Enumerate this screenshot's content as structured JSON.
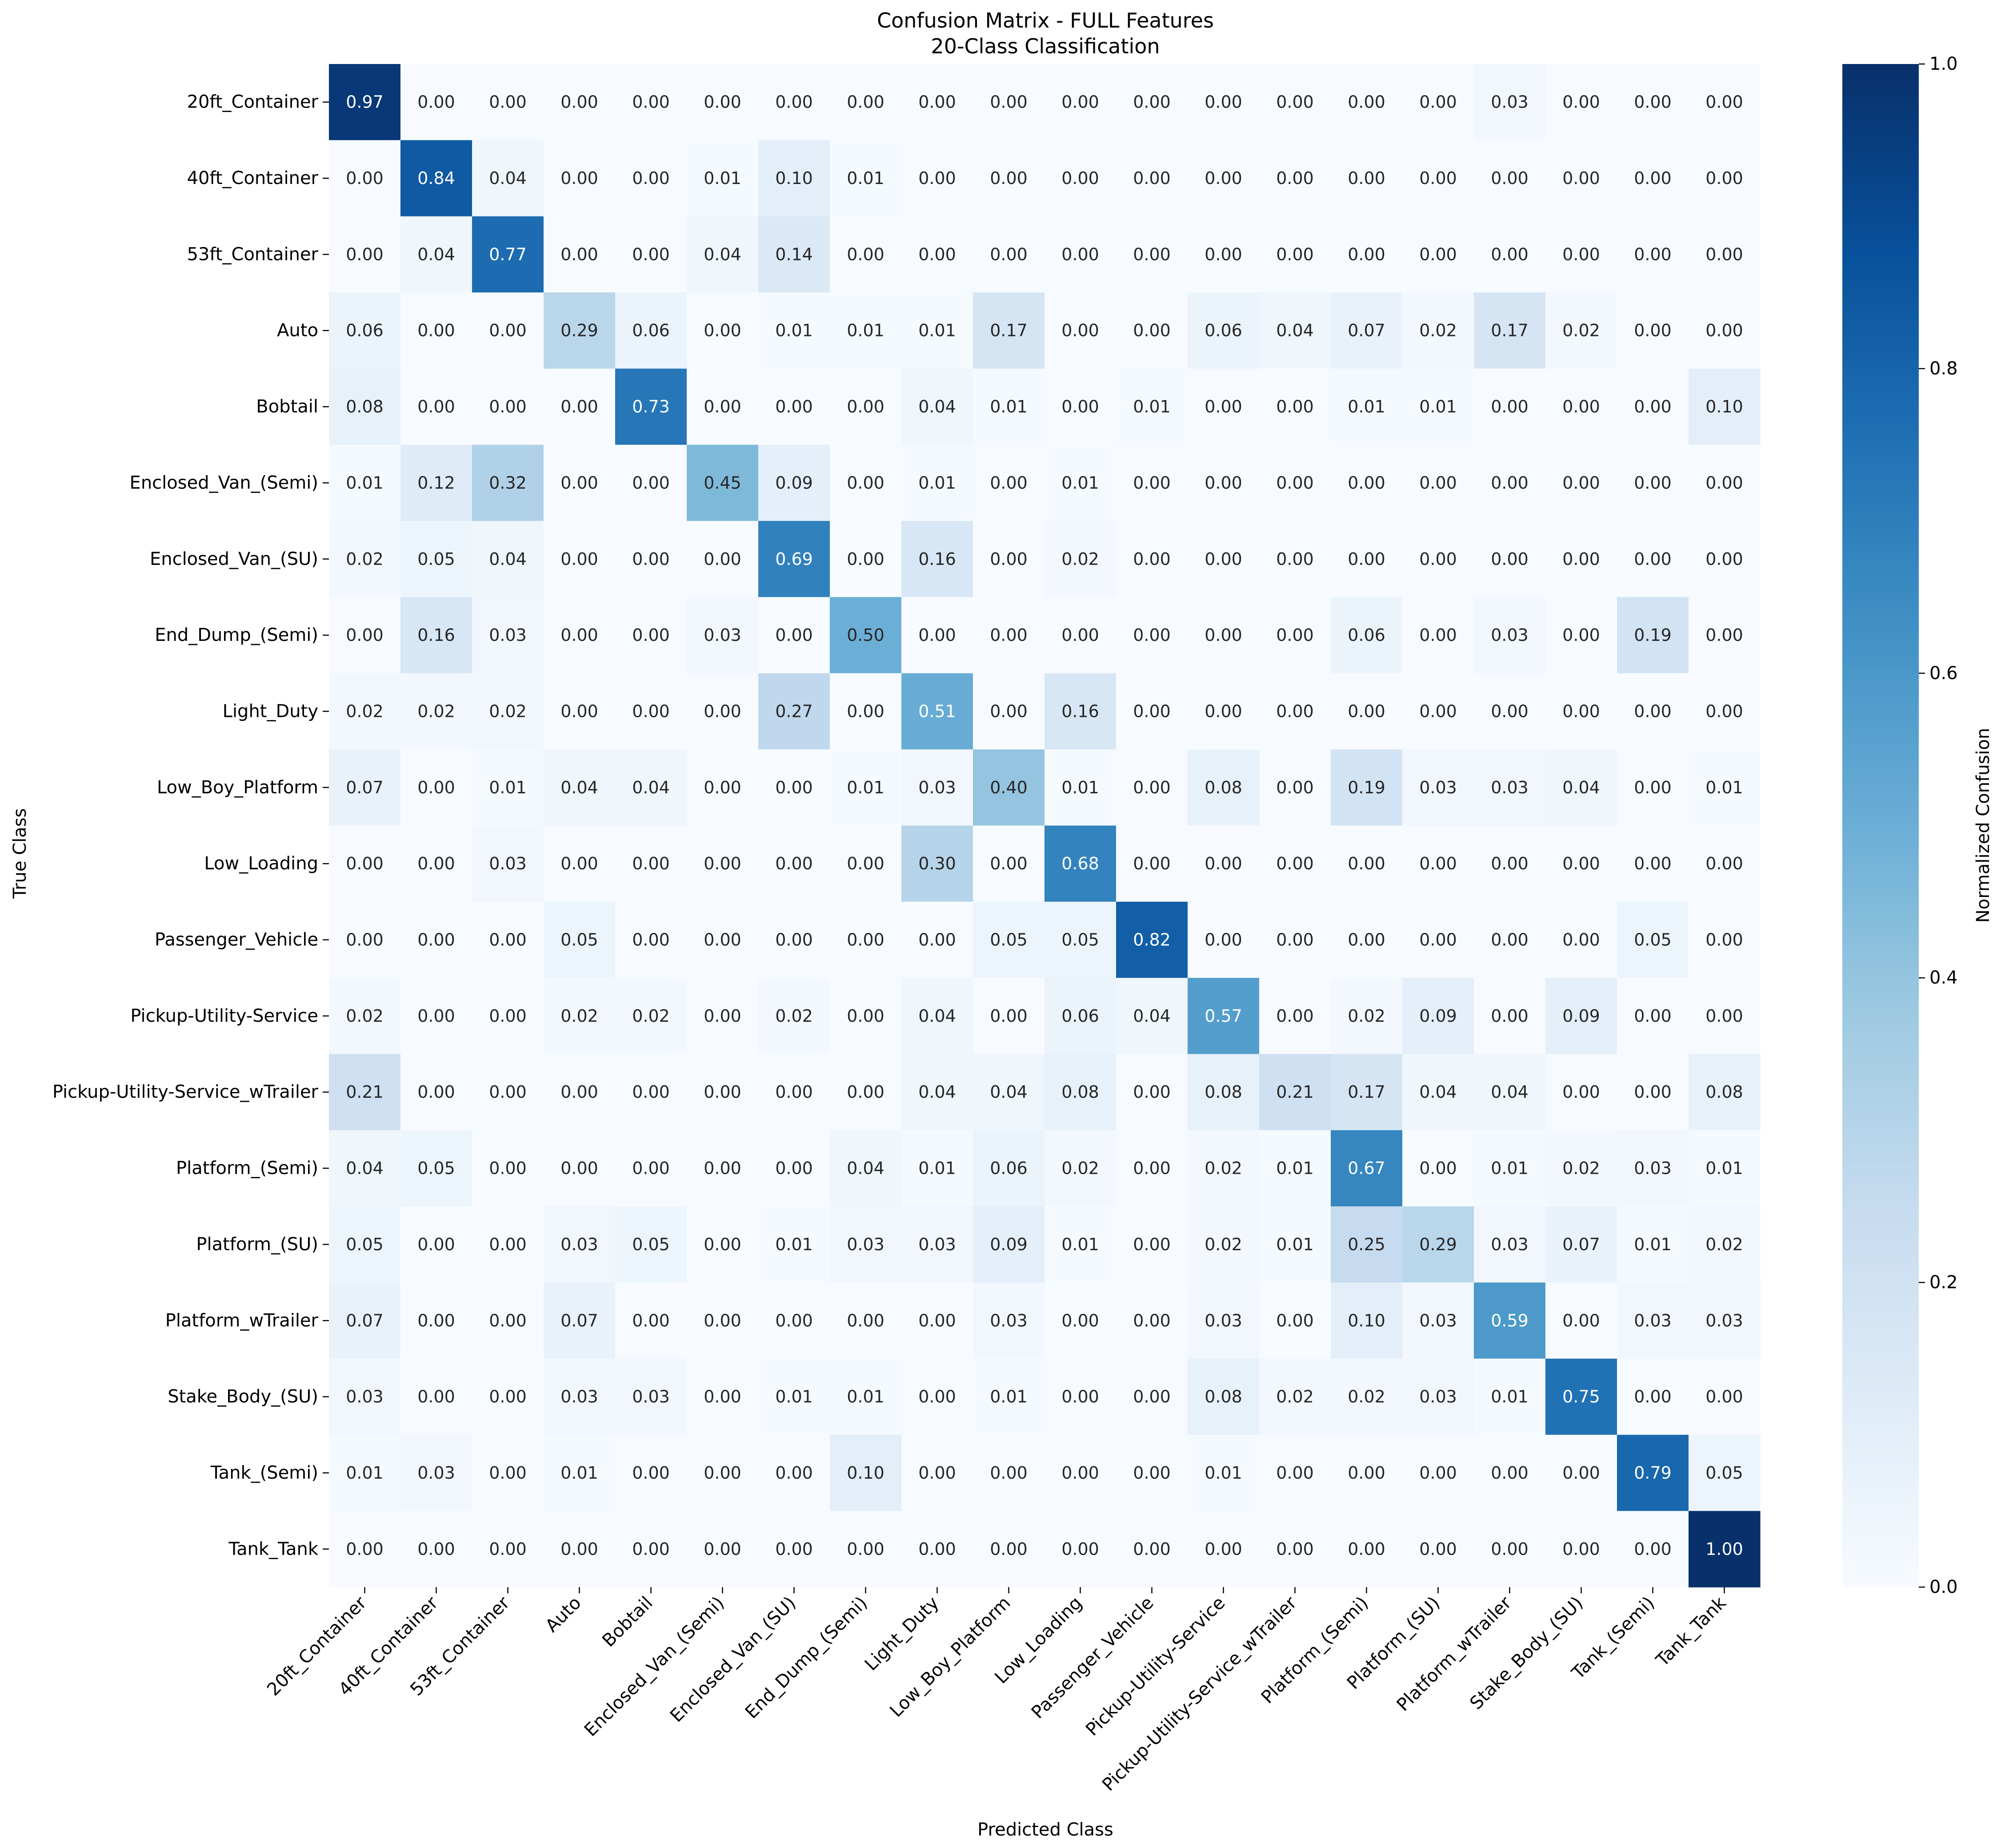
{
  "chart_data": {
    "type": "heatmap",
    "title": "Confusion Matrix - FULL Features",
    "subtitle": "20-Class Classification",
    "xlabel": "Predicted Class",
    "ylabel": "True Class",
    "colorbar_label": "Normalized Confusion",
    "colorbar_ticks": [
      "0.0",
      "0.2",
      "0.4",
      "0.6",
      "0.8",
      "1.0"
    ],
    "value_range": [
      0,
      1
    ],
    "colormap": "Blues",
    "classes": [
      "20ft_Container",
      "40ft_Container",
      "53ft_Container",
      "Auto",
      "Bobtail",
      "Enclosed_Van_(Semi)",
      "Enclosed_Van_(SU)",
      "End_Dump_(Semi)",
      "Light_Duty",
      "Low_Boy_Platform",
      "Low_Loading",
      "Passenger_Vehicle",
      "Pickup-Utility-Service",
      "Pickup-Utility-Service_wTrailer",
      "Platform_(Semi)",
      "Platform_(SU)",
      "Platform_wTrailer",
      "Stake_Body_(SU)",
      "Tank_(Semi)",
      "Tank_Tank"
    ],
    "matrix": [
      [
        0.97,
        0.0,
        0.0,
        0.0,
        0.0,
        0.0,
        0.0,
        0.0,
        0.0,
        0.0,
        0.0,
        0.0,
        0.0,
        0.0,
        0.0,
        0.0,
        0.03,
        0.0,
        0.0,
        0.0
      ],
      [
        0.0,
        0.84,
        0.04,
        0.0,
        0.0,
        0.01,
        0.1,
        0.01,
        0.0,
        0.0,
        0.0,
        0.0,
        0.0,
        0.0,
        0.0,
        0.0,
        0.0,
        0.0,
        0.0,
        0.0
      ],
      [
        0.0,
        0.04,
        0.77,
        0.0,
        0.0,
        0.04,
        0.14,
        0.0,
        0.0,
        0.0,
        0.0,
        0.0,
        0.0,
        0.0,
        0.0,
        0.0,
        0.0,
        0.0,
        0.0,
        0.0
      ],
      [
        0.06,
        0.0,
        0.0,
        0.29,
        0.06,
        0.0,
        0.01,
        0.01,
        0.01,
        0.17,
        0.0,
        0.0,
        0.06,
        0.04,
        0.07,
        0.02,
        0.17,
        0.02,
        0.0,
        0.0
      ],
      [
        0.08,
        0.0,
        0.0,
        0.0,
        0.73,
        0.0,
        0.0,
        0.0,
        0.04,
        0.01,
        0.0,
        0.01,
        0.0,
        0.0,
        0.01,
        0.01,
        0.0,
        0.0,
        0.0,
        0.1
      ],
      [
        0.01,
        0.12,
        0.32,
        0.0,
        0.0,
        0.45,
        0.09,
        0.0,
        0.01,
        0.0,
        0.01,
        0.0,
        0.0,
        0.0,
        0.0,
        0.0,
        0.0,
        0.0,
        0.0,
        0.0
      ],
      [
        0.02,
        0.05,
        0.04,
        0.0,
        0.0,
        0.0,
        0.69,
        0.0,
        0.16,
        0.0,
        0.02,
        0.0,
        0.0,
        0.0,
        0.0,
        0.0,
        0.0,
        0.0,
        0.0,
        0.0
      ],
      [
        0.0,
        0.16,
        0.03,
        0.0,
        0.0,
        0.03,
        0.0,
        0.5,
        0.0,
        0.0,
        0.0,
        0.0,
        0.0,
        0.0,
        0.06,
        0.0,
        0.03,
        0.0,
        0.19,
        0.0
      ],
      [
        0.02,
        0.02,
        0.02,
        0.0,
        0.0,
        0.0,
        0.27,
        0.0,
        0.51,
        0.0,
        0.16,
        0.0,
        0.0,
        0.0,
        0.0,
        0.0,
        0.0,
        0.0,
        0.0,
        0.0
      ],
      [
        0.07,
        0.0,
        0.01,
        0.04,
        0.04,
        0.0,
        0.0,
        0.01,
        0.03,
        0.4,
        0.01,
        0.0,
        0.08,
        0.0,
        0.19,
        0.03,
        0.03,
        0.04,
        0.0,
        0.01
      ],
      [
        0.0,
        0.0,
        0.03,
        0.0,
        0.0,
        0.0,
        0.0,
        0.0,
        0.3,
        0.0,
        0.68,
        0.0,
        0.0,
        0.0,
        0.0,
        0.0,
        0.0,
        0.0,
        0.0,
        0.0
      ],
      [
        0.0,
        0.0,
        0.0,
        0.05,
        0.0,
        0.0,
        0.0,
        0.0,
        0.0,
        0.05,
        0.05,
        0.82,
        0.0,
        0.0,
        0.0,
        0.0,
        0.0,
        0.0,
        0.05,
        0.0
      ],
      [
        0.02,
        0.0,
        0.0,
        0.02,
        0.02,
        0.0,
        0.02,
        0.0,
        0.04,
        0.0,
        0.06,
        0.04,
        0.57,
        0.0,
        0.02,
        0.09,
        0.0,
        0.09,
        0.0,
        0.0
      ],
      [
        0.21,
        0.0,
        0.0,
        0.0,
        0.0,
        0.0,
        0.0,
        0.0,
        0.04,
        0.04,
        0.08,
        0.0,
        0.08,
        0.21,
        0.17,
        0.04,
        0.04,
        0.0,
        0.0,
        0.08
      ],
      [
        0.04,
        0.05,
        0.0,
        0.0,
        0.0,
        0.0,
        0.0,
        0.04,
        0.01,
        0.06,
        0.02,
        0.0,
        0.02,
        0.01,
        0.67,
        0.0,
        0.01,
        0.02,
        0.03,
        0.01
      ],
      [
        0.05,
        0.0,
        0.0,
        0.03,
        0.05,
        0.0,
        0.01,
        0.03,
        0.03,
        0.09,
        0.01,
        0.0,
        0.02,
        0.01,
        0.25,
        0.29,
        0.03,
        0.07,
        0.01,
        0.02
      ],
      [
        0.07,
        0.0,
        0.0,
        0.07,
        0.0,
        0.0,
        0.0,
        0.0,
        0.0,
        0.03,
        0.0,
        0.0,
        0.03,
        0.0,
        0.1,
        0.03,
        0.59,
        0.0,
        0.03,
        0.03
      ],
      [
        0.03,
        0.0,
        0.0,
        0.03,
        0.03,
        0.0,
        0.01,
        0.01,
        0.0,
        0.01,
        0.0,
        0.0,
        0.08,
        0.02,
        0.02,
        0.03,
        0.01,
        0.75,
        0.0,
        0.0
      ],
      [
        0.01,
        0.03,
        0.0,
        0.01,
        0.0,
        0.0,
        0.0,
        0.1,
        0.0,
        0.0,
        0.0,
        0.0,
        0.01,
        0.0,
        0.0,
        0.0,
        0.0,
        0.0,
        0.79,
        0.05
      ],
      [
        0.0,
        0.0,
        0.0,
        0.0,
        0.0,
        0.0,
        0.0,
        0.0,
        0.0,
        0.0,
        0.0,
        0.0,
        0.0,
        0.0,
        0.0,
        0.0,
        0.0,
        0.0,
        0.0,
        1.0
      ]
    ]
  }
}
